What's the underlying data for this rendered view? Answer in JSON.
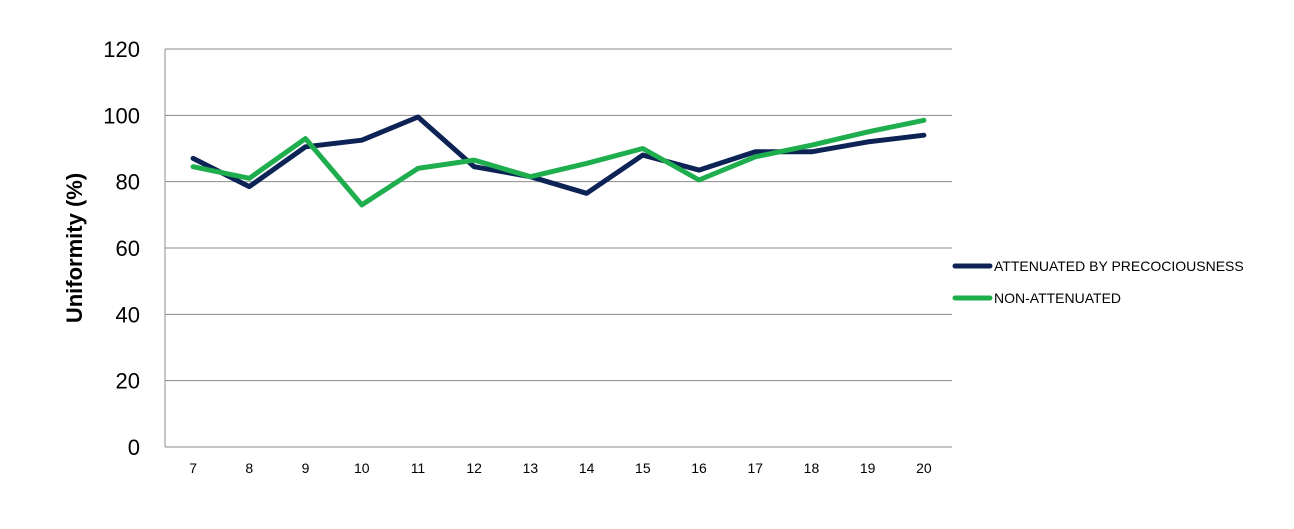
{
  "chart_data": {
    "type": "line",
    "title": "",
    "xlabel": "",
    "ylabel": "Uniformity (%)",
    "ylim": [
      0,
      120
    ],
    "yticks": [
      0,
      20,
      40,
      60,
      80,
      100,
      120
    ],
    "grid": true,
    "legend_position": "right",
    "categories": [
      "7",
      "8",
      "9",
      "10",
      "11",
      "12",
      "13",
      "14",
      "15",
      "16",
      "17",
      "18",
      "19",
      "20"
    ],
    "series": [
      {
        "name": "ATTENUATED BY PRECOCIOUSNESS",
        "color": "#0d2356",
        "values": [
          87,
          78.5,
          90.5,
          92.5,
          99.5,
          84.5,
          81.5,
          76.5,
          88,
          83.5,
          89,
          89,
          92,
          94
        ]
      },
      {
        "name": "NON-ATTENUATED",
        "color": "#1fae4e",
        "values": [
          84.5,
          81,
          93,
          73,
          84,
          86.5,
          81.5,
          85.5,
          90,
          80.5,
          87.5,
          91,
          95,
          98.5
        ]
      }
    ]
  }
}
